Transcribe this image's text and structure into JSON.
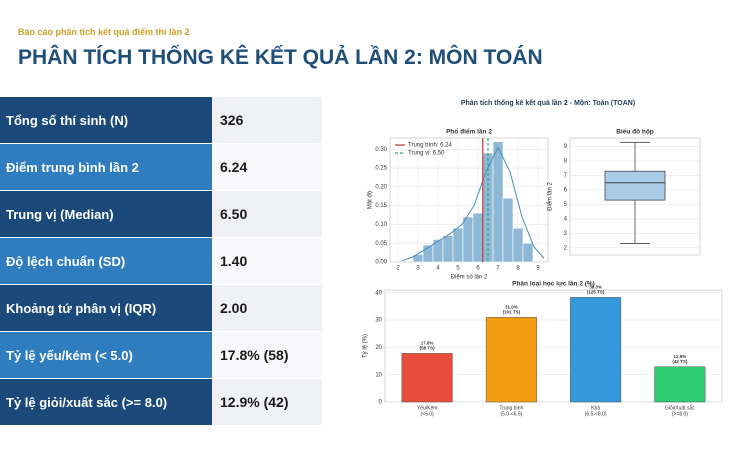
{
  "header": {
    "subtitle": "Báo cáo phân tích kết quả điểm thi lần 2",
    "title": "PHÂN TÍCH THỐNG KÊ KẾT QUẢ LẦN 2: MÔN TOÁN"
  },
  "table": {
    "rows": [
      [
        "Tổng số thí sinh (N)",
        "326"
      ],
      [
        "Điểm trung bình lần 2",
        "6.24"
      ],
      [
        "Trung vị (Median)",
        "6.50"
      ],
      [
        "Độ lệch chuẩn (SD)",
        "1.40"
      ],
      [
        "Khoảng tứ phân vị (IQR)",
        "2.00"
      ],
      [
        "Tỷ lệ yếu/kém (< 5.0)",
        "17.8% (58)"
      ],
      [
        "Tỷ lệ giỏi/xuất sắc (>= 8.0)",
        "12.9% (42)"
      ]
    ]
  },
  "figure_title": "Phân tích thống kê kết quả lần 2 - Môn: Toán (TOAN)",
  "chart_data": [
    {
      "type": "histogram",
      "title": "Phổ điểm lần 2",
      "x_label": "Điểm số lần 2",
      "y_label": "Mật độ",
      "color": "#8fb8d6",
      "bins": [
        2.75,
        3.25,
        3.75,
        4.25,
        4.75,
        5.25,
        5.75,
        6.25,
        6.75,
        7.25,
        7.75,
        8.25,
        8.75
      ],
      "values": [
        0.02,
        0.045,
        0.06,
        0.07,
        0.09,
        0.12,
        0.13,
        0.29,
        0.32,
        0.17,
        0.09,
        0.05
      ],
      "kde": {
        "color": "#4a90b8",
        "x": [
          2.2,
          2.8,
          3.4,
          4,
          4.6,
          5.2,
          5.8,
          6.4,
          7,
          7.6,
          8.2,
          8.8,
          9.3
        ],
        "values": [
          0.003,
          0.015,
          0.035,
          0.055,
          0.075,
          0.1,
          0.15,
          0.24,
          0.305,
          0.24,
          0.12,
          0.04,
          0.01
        ]
      },
      "lines": [
        {
          "name": "Trung bình: 6.24",
          "value": 6.24,
          "color": "#c0392b",
          "dash": false
        },
        {
          "name": "Trung vị: 6.50",
          "value": 6.5,
          "color": "#2ca87f",
          "dash": true
        }
      ],
      "xlim": [
        1.6,
        9.5
      ],
      "xticks": [
        2,
        3,
        4,
        5,
        6,
        7,
        8,
        9
      ],
      "ylim": [
        0,
        0.33
      ],
      "yticks": [
        {
          "value": 0,
          "label": "0.00"
        },
        {
          "value": 0.05,
          "label": "0.05"
        },
        {
          "value": 0.1,
          "label": "0.10"
        },
        {
          "value": 0.15,
          "label": "0.15"
        },
        {
          "value": 0.2,
          "label": "0.20"
        },
        {
          "value": 0.25,
          "label": "0.25"
        },
        {
          "value": 0.3,
          "label": "0.30"
        }
      ],
      "grid": true
    },
    {
      "type": "box",
      "title": "Biểu đồ hộp",
      "y_label": "Điểm lần 2",
      "color": "#a9cbe6",
      "stats": {
        "whislo": 2.3,
        "q1": 5.3,
        "med": 6.5,
        "q3": 7.3,
        "whishi": 9.3
      },
      "ylim": [
        1.5,
        9.6
      ],
      "yticks": [
        2,
        3,
        4,
        5,
        6,
        7,
        8,
        9
      ],
      "grid": true
    },
    {
      "type": "bar",
      "title": "Phân loại học lực lần 2 (%)",
      "y_label": "Tỷ lệ (%)",
      "categories": [
        [
          "Yếu/Kém",
          "(<5.0)"
        ],
        [
          "Trung bình",
          "(5.0-<6.5)"
        ],
        [
          "Khá",
          "(6.5-<8.0)"
        ],
        [
          "Giỏi/Xuất sắc",
          "(>=8.0)"
        ]
      ],
      "values": [
        17.8,
        31.0,
        38.3,
        12.9
      ],
      "value_labels": [
        [
          "17.8%",
          "(58 TS)"
        ],
        [
          "31.0%",
          "(101 TS)"
        ],
        [
          "38.3%",
          "(125 TS)"
        ],
        [
          "12.9%",
          "(42 TS)"
        ]
      ],
      "colors": [
        "#e74c3c",
        "#f39c12",
        "#3498db",
        "#2ecc71"
      ],
      "ylim": [
        0,
        41
      ],
      "yticks": [
        0,
        10,
        20,
        30,
        40
      ],
      "grid": true
    }
  ]
}
